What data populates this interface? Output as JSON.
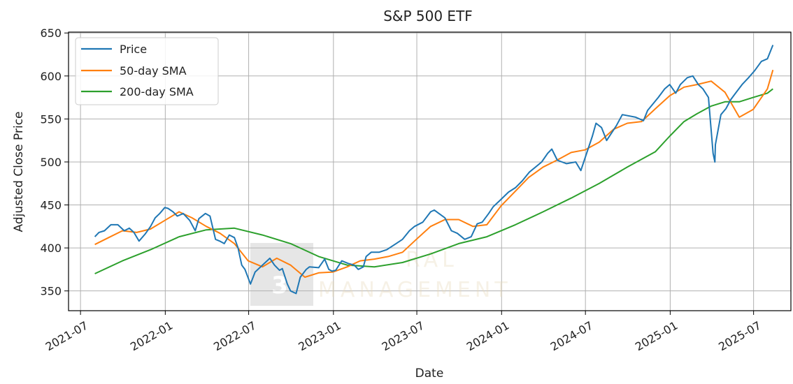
{
  "chart_data": {
    "type": "line",
    "title": "S&P 500 ETF",
    "xlabel": "Date",
    "ylabel": "Adjusted Close Price",
    "x_range": [
      "2021-06-05",
      "2025-09-20"
    ],
    "ylim": [
      327,
      651
    ],
    "grid": true,
    "legend_position": "top-left",
    "x_ticks": [
      "2021-07",
      "2022-01",
      "2022-07",
      "2023-01",
      "2023-07",
      "2024-01",
      "2024-07",
      "2025-01",
      "2025-07"
    ],
    "y_ticks": [
      350,
      400,
      450,
      500,
      550,
      600,
      650
    ],
    "colors": {
      "Price": "#1f77b4",
      "50-day SMA": "#ff7f0e",
      "200-day SMA": "#2ca02c"
    },
    "series": [
      {
        "name": "Price",
        "x": [
          "2021-08-01",
          "2021-08-10",
          "2021-08-22",
          "2021-09-05",
          "2021-09-20",
          "2021-10-04",
          "2021-10-15",
          "2021-10-25",
          "2021-11-05",
          "2021-11-18",
          "2021-11-30",
          "2021-12-10",
          "2021-12-20",
          "2021-12-31",
          "2022-01-07",
          "2022-01-18",
          "2022-01-27",
          "2022-02-09",
          "2022-02-23",
          "2022-03-07",
          "2022-03-15",
          "2022-03-29",
          "2022-04-08",
          "2022-04-20",
          "2022-04-29",
          "2022-05-09",
          "2022-05-20",
          "2022-05-31",
          "2022-06-08",
          "2022-06-16",
          "2022-06-23",
          "2022-07-05",
          "2022-07-15",
          "2022-07-29",
          "2022-08-16",
          "2022-08-26",
          "2022-09-06",
          "2022-09-12",
          "2022-09-23",
          "2022-09-30",
          "2022-10-12",
          "2022-10-21",
          "2022-11-03",
          "2022-11-10",
          "2022-11-30",
          "2022-12-13",
          "2022-12-22",
          "2022-12-29",
          "2023-01-06",
          "2023-01-19",
          "2023-02-02",
          "2023-02-15",
          "2023-02-24",
          "2023-03-07",
          "2023-03-13",
          "2023-03-24",
          "2023-04-10",
          "2023-04-27",
          "2023-05-17",
          "2023-05-31",
          "2023-06-15",
          "2023-06-26",
          "2023-07-14",
          "2023-07-31",
          "2023-08-08",
          "2023-08-18",
          "2023-08-31",
          "2023-09-14",
          "2023-09-27",
          "2023-10-13",
          "2023-10-27",
          "2023-11-09",
          "2023-11-20",
          "2023-12-04",
          "2023-12-14",
          "2023-12-28",
          "2024-01-16",
          "2024-01-31",
          "2024-02-15",
          "2024-03-01",
          "2024-03-28",
          "2024-04-10",
          "2024-04-19",
          "2024-05-01",
          "2024-05-21",
          "2024-06-10",
          "2024-06-21",
          "2024-07-16",
          "2024-07-24",
          "2024-08-05",
          "2024-08-16",
          "2024-09-06",
          "2024-09-19",
          "2024-10-18",
          "2024-11-04",
          "2024-11-13",
          "2024-12-06",
          "2024-12-20",
          "2024-12-31",
          "2025-01-13",
          "2025-01-23",
          "2025-02-07",
          "2025-02-19",
          "2025-03-03",
          "2025-03-13",
          "2025-03-25",
          "2025-04-04",
          "2025-04-08",
          "2025-04-09",
          "2025-04-21",
          "2025-05-02",
          "2025-05-13",
          "2025-05-23",
          "2025-06-06",
          "2025-06-20",
          "2025-07-03",
          "2025-07-18",
          "2025-07-31",
          "2025-08-12"
        ],
        "values": [
          413,
          418,
          420,
          427,
          427,
          420,
          423,
          418,
          408,
          416,
          425,
          435,
          440,
          447,
          446,
          442,
          437,
          440,
          432,
          420,
          434,
          440,
          437,
          410,
          408,
          405,
          415,
          412,
          400,
          380,
          375,
          358,
          372,
          379,
          388,
          380,
          374,
          376,
          358,
          350,
          347,
          366,
          375,
          378,
          377,
          387,
          375,
          373,
          374,
          385,
          382,
          380,
          375,
          378,
          390,
          395,
          395,
          398,
          405,
          410,
          420,
          425,
          430,
          442,
          444,
          440,
          435,
          420,
          417,
          410,
          413,
          428,
          430,
          440,
          448,
          455,
          465,
          470,
          478,
          488,
          500,
          510,
          515,
          502,
          498,
          500,
          490,
          530,
          545,
          540,
          525,
          542,
          555,
          552,
          548,
          560,
          575,
          585,
          590,
          580,
          590,
          598,
          600,
          590,
          585,
          575,
          510,
          500,
          520,
          555,
          562,
          573,
          580,
          590,
          598,
          606,
          617,
          620,
          636
        ]
      },
      {
        "name": "50-day SMA",
        "x": [
          "2021-08-01",
          "2021-08-31",
          "2021-09-30",
          "2021-10-31",
          "2021-11-30",
          "2021-12-31",
          "2022-01-31",
          "2022-02-28",
          "2022-03-31",
          "2022-04-30",
          "2022-05-31",
          "2022-06-30",
          "2022-07-31",
          "2022-08-31",
          "2022-09-30",
          "2022-10-31",
          "2022-11-30",
          "2022-12-31",
          "2023-01-31",
          "2023-02-28",
          "2023-03-31",
          "2023-04-30",
          "2023-05-31",
          "2023-06-30",
          "2023-07-31",
          "2023-08-31",
          "2023-09-30",
          "2023-10-31",
          "2023-11-30",
          "2023-12-31",
          "2024-01-31",
          "2024-02-29",
          "2024-03-31",
          "2024-04-30",
          "2024-05-31",
          "2024-06-30",
          "2024-07-31",
          "2024-08-31",
          "2024-09-30",
          "2024-10-31",
          "2024-11-30",
          "2024-12-31",
          "2025-01-31",
          "2025-02-28",
          "2025-03-31",
          "2025-04-30",
          "2025-05-31",
          "2025-06-30",
          "2025-07-31",
          "2025-08-12"
        ],
        "values": [
          404,
          412,
          420,
          418,
          422,
          432,
          442,
          435,
          425,
          417,
          405,
          385,
          378,
          388,
          380,
          366,
          371,
          372,
          378,
          385,
          387,
          390,
          395,
          410,
          425,
          433,
          433,
          425,
          427,
          449,
          466,
          482,
          494,
          502,
          511,
          514,
          523,
          538,
          545,
          547,
          562,
          577,
          587,
          590,
          594,
          581,
          552,
          561,
          585,
          607
        ]
      },
      {
        "name": "200-day SMA",
        "x": [
          "2021-08-01",
          "2021-09-30",
          "2021-11-30",
          "2022-01-31",
          "2022-03-31",
          "2022-05-31",
          "2022-07-31",
          "2022-09-30",
          "2022-11-30",
          "2023-01-31",
          "2023-03-31",
          "2023-05-31",
          "2023-07-31",
          "2023-09-30",
          "2023-11-30",
          "2024-01-31",
          "2024-03-31",
          "2024-05-31",
          "2024-07-31",
          "2024-09-30",
          "2024-11-30",
          "2024-12-31",
          "2025-01-31",
          "2025-02-28",
          "2025-03-31",
          "2025-04-30",
          "2025-05-31",
          "2025-06-30",
          "2025-07-31",
          "2025-08-12"
        ],
        "values": [
          370,
          385,
          398,
          413,
          421,
          423,
          415,
          405,
          390,
          380,
          378,
          383,
          393,
          405,
          413,
          427,
          442,
          458,
          475,
          494,
          512,
          530,
          547,
          556,
          565,
          570,
          570,
          575,
          580,
          585
        ]
      }
    ]
  },
  "watermark": {
    "logo_char": "3",
    "word_top": "RAL",
    "word_bottom": "MANAGEMENT"
  }
}
